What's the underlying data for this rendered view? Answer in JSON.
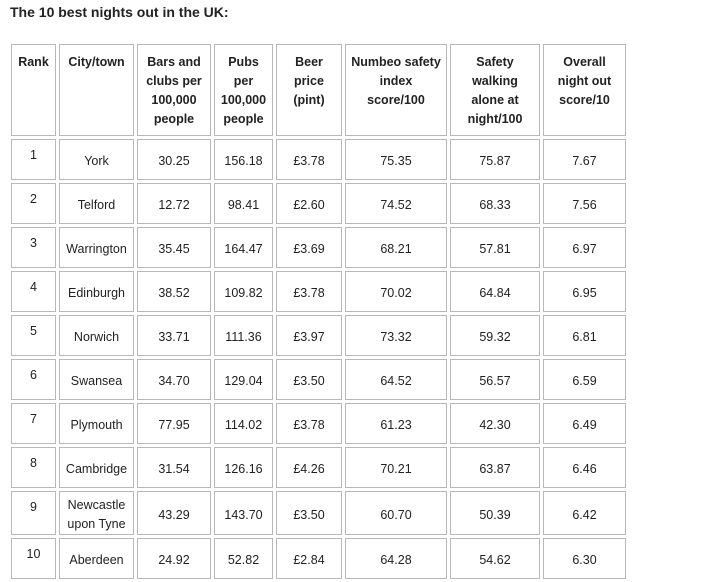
{
  "header": {
    "title": "The 10 best nights out in the UK:"
  },
  "table": {
    "columns": [
      "Rank",
      "City/town",
      "Bars and clubs per 100,000 people",
      "Pubs per 100,000 people",
      "Beer price (pint)",
      "Numbeo safety index score/100",
      "Safety walking alone at night/100",
      "Overall night out score/10"
    ],
    "rows": [
      [
        "1",
        "York",
        "30.25",
        "156.18",
        "£3.78",
        "75.35",
        "75.87",
        "7.67"
      ],
      [
        "2",
        "Telford",
        "12.72",
        "98.41",
        "£2.60",
        "74.52",
        "68.33",
        "7.56"
      ],
      [
        "3",
        "Warrington",
        "35.45",
        "164.47",
        "£3.69",
        "68.21",
        "57.81",
        "6.97"
      ],
      [
        "4",
        "Edinburgh",
        "38.52",
        "109.82",
        "£3.78",
        "70.02",
        "64.84",
        "6.95"
      ],
      [
        "5",
        "Norwich",
        "33.71",
        "111.36",
        "£3.97",
        "73.32",
        "59.32",
        "6.81"
      ],
      [
        "6",
        "Swansea",
        "34.70",
        "129.04",
        "£3.50",
        "64.52",
        "56.57",
        "6.59"
      ],
      [
        "7",
        "Plymouth",
        "77.95",
        "114.02",
        "£3.78",
        "61.23",
        "42.30",
        "6.49"
      ],
      [
        "8",
        "Cambridge",
        "31.54",
        "126.16",
        "£4.26",
        "70.21",
        "63.87",
        "6.46"
      ],
      [
        "9",
        "Newcastle upon Tyne",
        "43.29",
        "143.70",
        "£3.50",
        "60.70",
        "50.39",
        "6.42"
      ],
      [
        "10",
        "Aberdeen",
        "24.92",
        "52.82",
        "£2.84",
        "64.28",
        "54.62",
        "6.30"
      ]
    ]
  }
}
